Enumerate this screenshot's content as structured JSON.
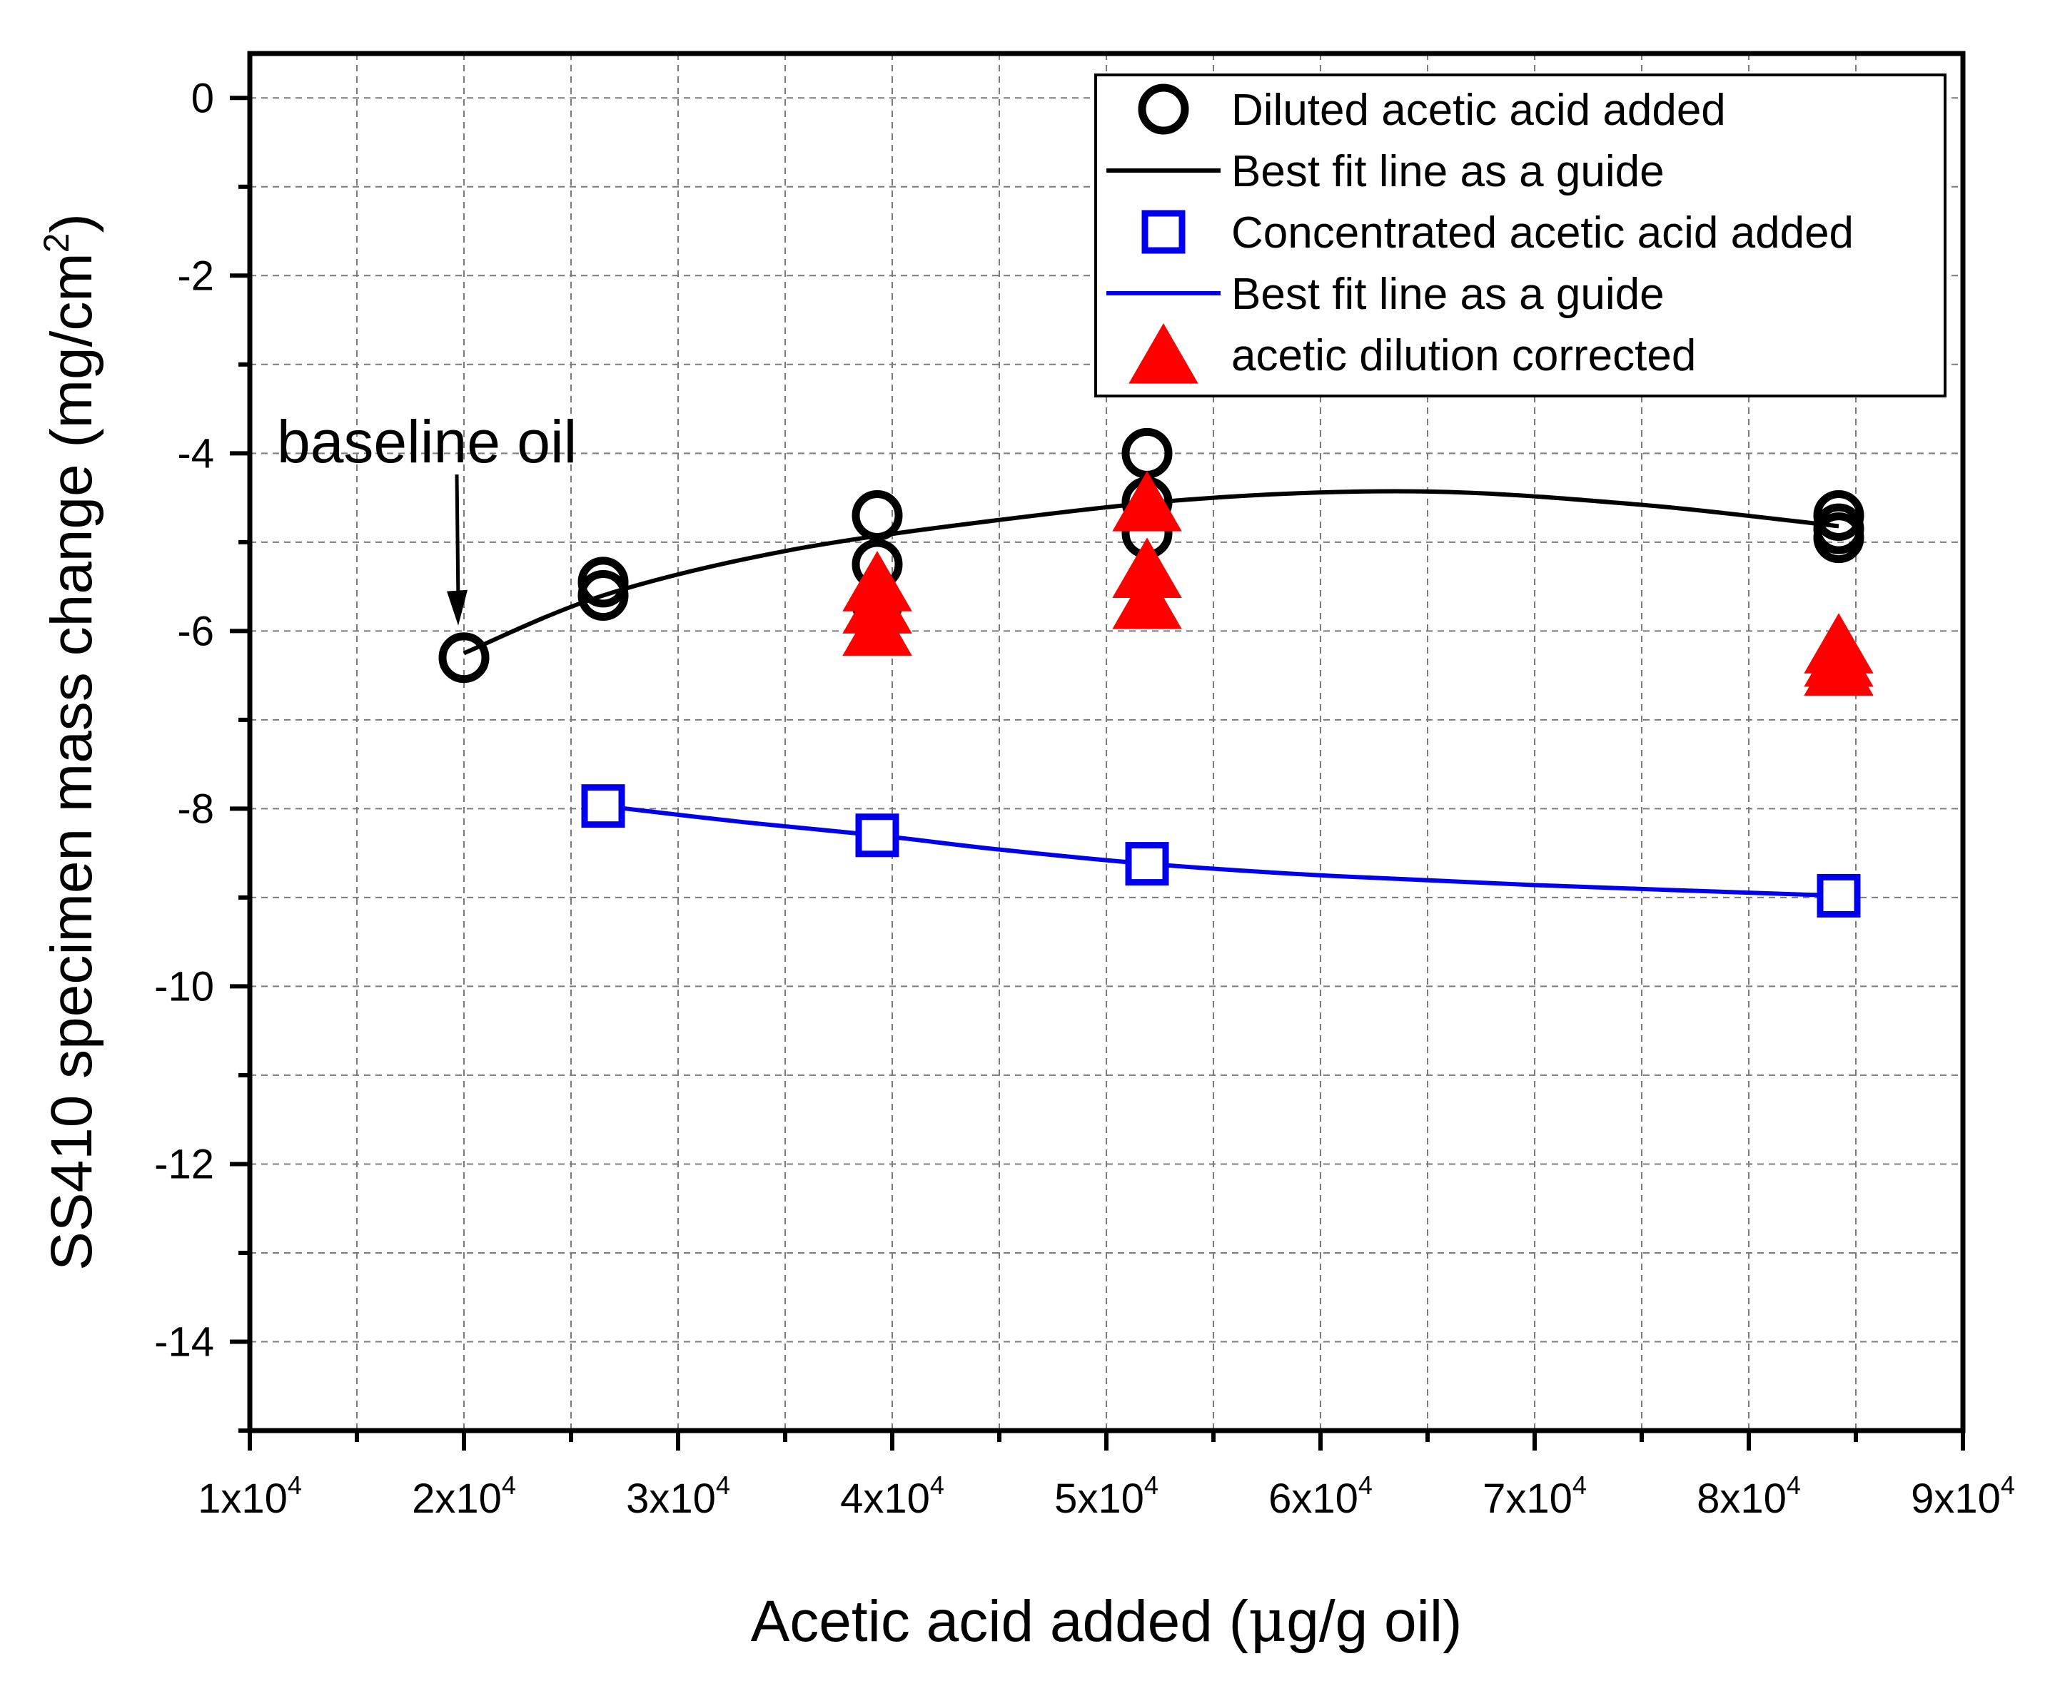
{
  "chart_data": {
    "type": "scatter",
    "xlabel": "Acetic acid added (μg/g oil)",
    "ylabel": "SS410 specimen mass change (mg/cm²)",
    "xlabel_parts": [
      "Acetic acid added (",
      "μ",
      "g/g oil)"
    ],
    "ylabel_parts": [
      "SS410 specimen mass change (mg/cm",
      "2",
      ")"
    ],
    "xlim": [
      10000,
      90000
    ],
    "ylim": [
      -15,
      0.5
    ],
    "grid": true,
    "legend_position": "top-right",
    "x_ticks": [
      {
        "value": 10000,
        "mantissa": "1x10",
        "exp": "4"
      },
      {
        "value": 20000,
        "mantissa": "2x10",
        "exp": "4"
      },
      {
        "value": 30000,
        "mantissa": "3x10",
        "exp": "4"
      },
      {
        "value": 40000,
        "mantissa": "4x10",
        "exp": "4"
      },
      {
        "value": 50000,
        "mantissa": "5x10",
        "exp": "4"
      },
      {
        "value": 60000,
        "mantissa": "6x10",
        "exp": "4"
      },
      {
        "value": 70000,
        "mantissa": "7x10",
        "exp": "4"
      },
      {
        "value": 80000,
        "mantissa": "8x10",
        "exp": "4"
      },
      {
        "value": 90000,
        "mantissa": "9x10",
        "exp": "4"
      }
    ],
    "y_ticks": [
      {
        "value": 0,
        "label": "0"
      },
      {
        "value": -2,
        "label": "-2"
      },
      {
        "value": -4,
        "label": "-4"
      },
      {
        "value": -6,
        "label": "-6"
      },
      {
        "value": -8,
        "label": "-8"
      },
      {
        "value": -10,
        "label": "-10"
      },
      {
        "value": -12,
        "label": "-12"
      },
      {
        "value": -14,
        "label": "-14"
      }
    ],
    "series": [
      {
        "name": "Diluted acetic acid added",
        "kind": "scatter",
        "marker": "circle",
        "color": "#000000",
        "points": [
          [
            20000,
            -6.3
          ],
          [
            26500,
            -5.45
          ],
          [
            26500,
            -5.6
          ],
          [
            39300,
            -4.7
          ],
          [
            39300,
            -5.25
          ],
          [
            39300,
            -5.7
          ],
          [
            51900,
            -4.0
          ],
          [
            51900,
            -4.55
          ],
          [
            51900,
            -4.9
          ],
          [
            84200,
            -4.7
          ],
          [
            84200,
            -4.85
          ],
          [
            84200,
            -4.95
          ]
        ]
      },
      {
        "name": "Best fit line as a guide",
        "kind": "line",
        "color": "#000000",
        "x": [
          20000,
          26500,
          35000,
          45000,
          55000,
          65000,
          75000,
          84200
        ],
        "y": [
          -6.25,
          -5.6,
          -5.1,
          -4.75,
          -4.5,
          -4.43,
          -4.58,
          -4.82
        ]
      },
      {
        "name": "Concentrated acetic acid added",
        "kind": "scatter",
        "marker": "square",
        "color": "#0000ee",
        "points": [
          [
            26500,
            -7.97
          ],
          [
            39300,
            -8.3
          ],
          [
            51900,
            -8.62
          ],
          [
            84200,
            -8.98
          ]
        ]
      },
      {
        "name": "Best fit line as a guide",
        "kind": "line",
        "color": "#0000ee",
        "x": [
          26500,
          33000,
          39300,
          45000,
          51900,
          60000,
          70000,
          84200
        ],
        "y": [
          -7.97,
          -8.15,
          -8.3,
          -8.46,
          -8.62,
          -8.75,
          -8.86,
          -8.98
        ]
      },
      {
        "name": "acetic dilution corrected",
        "kind": "scatter",
        "marker": "triangle",
        "color": "#ff0000",
        "points": [
          [
            39300,
            -5.5
          ],
          [
            39300,
            -5.75
          ],
          [
            39300,
            -6.0
          ],
          [
            51900,
            -4.6
          ],
          [
            51900,
            -5.35
          ],
          [
            51900,
            -5.7
          ],
          [
            84200,
            -6.2
          ],
          [
            84200,
            -6.35
          ],
          [
            84200,
            -6.45
          ]
        ]
      }
    ],
    "legend": [
      {
        "label": "Diluted acetic acid added",
        "symbol": "circle",
        "color": "#000000"
      },
      {
        "label": "Best fit line as a guide",
        "symbol": "line",
        "color": "#000000"
      },
      {
        "label": "Concentrated acetic acid added",
        "symbol": "square",
        "color": "#0000ee"
      },
      {
        "label": "Best fit line as a guide",
        "symbol": "line",
        "color": "#0000ee"
      },
      {
        "label": "acetic dilution corrected",
        "symbol": "triangle",
        "color": "#ff0000"
      }
    ],
    "annotations": [
      {
        "text": "baseline oil",
        "x": 20000,
        "y": -6.3
      }
    ]
  }
}
